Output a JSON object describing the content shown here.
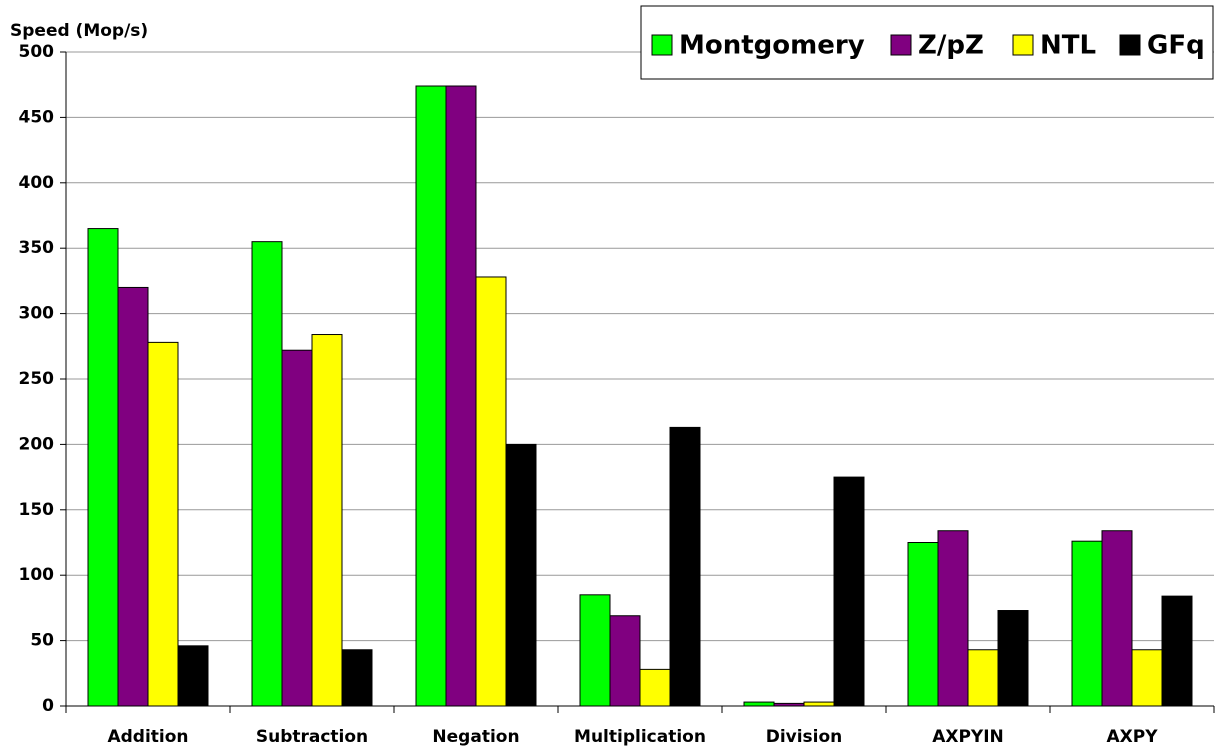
{
  "chart_data": {
    "type": "bar",
    "y_label": "Speed (Mop/s)",
    "categories": [
      "Addition",
      "Subtraction",
      "Negation",
      "Multiplication",
      "Division",
      "AXPYIN",
      "AXPY"
    ],
    "series": [
      {
        "name": "Montgomery",
        "color": "#00ff00",
        "values": [
          365,
          355,
          474,
          85,
          3,
          125,
          126
        ]
      },
      {
        "name": "Z/pZ",
        "color": "#800080",
        "values": [
          320,
          272,
          474,
          69,
          2,
          134,
          134
        ]
      },
      {
        "name": "NTL",
        "color": "#ffff00",
        "values": [
          278,
          284,
          328,
          28,
          3,
          43,
          43
        ]
      },
      {
        "name": "GFq",
        "color": "#000000",
        "values": [
          46,
          43,
          200,
          213,
          175,
          73,
          84
        ]
      }
    ],
    "ylim": [
      0,
      500
    ],
    "yticks": [
      0,
      50,
      100,
      150,
      200,
      250,
      300,
      350,
      400,
      450,
      500
    ],
    "grid": true,
    "legend": "top-right"
  }
}
